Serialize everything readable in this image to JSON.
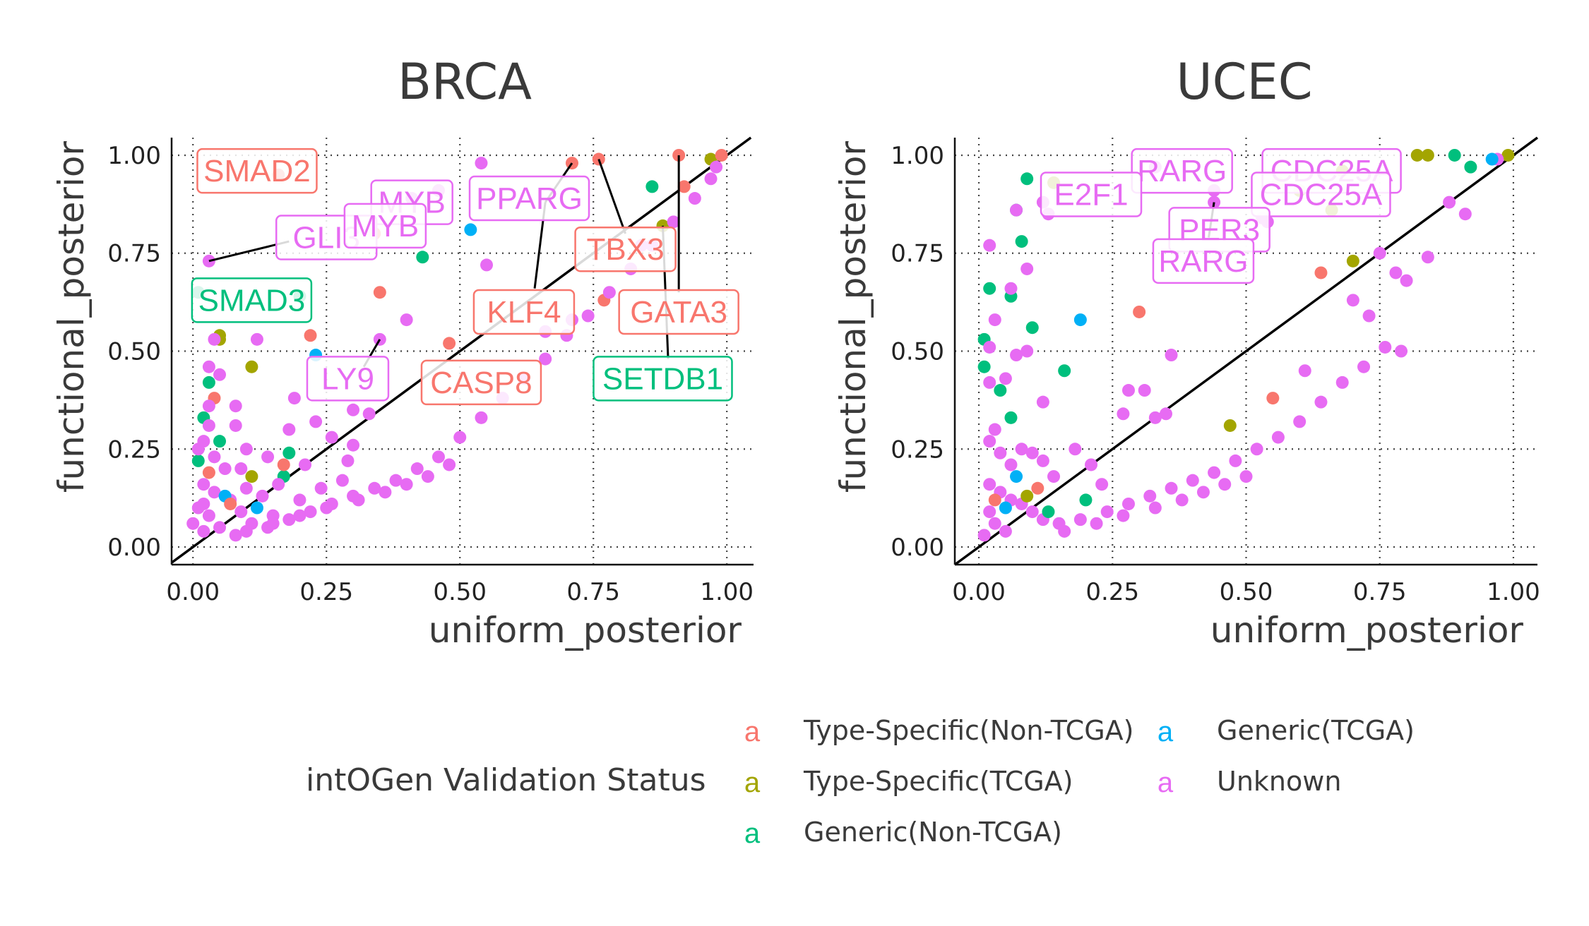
{
  "legend": {
    "title": "intOGen Validation Status",
    "key_glyph": "a",
    "items": [
      {
        "label": "Type-Specific(Non-TCGA)",
        "color": "#F8766D"
      },
      {
        "label": "Type-Specific(TCGA)",
        "color": "#A3A500"
      },
      {
        "label": "Generic(Non-TCGA)",
        "color": "#00BF7D"
      },
      {
        "label": "Generic(TCGA)",
        "color": "#00B0F6"
      },
      {
        "label": "Unknown",
        "color": "#E76BF3"
      }
    ]
  },
  "chart_data": [
    {
      "type": "scatter",
      "title": "BRCA",
      "xlabel": "uniform_posterior",
      "ylabel": "functional_posterior",
      "xlim": [
        -0.04,
        1.05
      ],
      "ylim": [
        -0.045,
        1.045
      ],
      "xticks": [
        "0.00",
        "0.25",
        "0.50",
        "0.75",
        "1.00"
      ],
      "yticks": [
        "0.00",
        "0.25",
        "0.50",
        "0.75",
        "1.00"
      ],
      "grid": true,
      "diagonal": true,
      "points": [
        [
          0.97,
          0.99,
          1
        ],
        [
          0.99,
          1.0,
          0
        ],
        [
          0.92,
          0.92,
          0
        ],
        [
          0.91,
          1.0,
          0
        ],
        [
          0.86,
          0.92,
          2
        ],
        [
          0.88,
          0.82,
          1
        ],
        [
          0.76,
          0.99,
          0
        ],
        [
          0.71,
          0.98,
          0
        ],
        [
          0.34,
          0.8,
          0
        ],
        [
          0.35,
          0.65,
          0
        ],
        [
          0.16,
          0.95,
          0
        ],
        [
          0.03,
          0.73,
          4
        ],
        [
          0.2,
          0.64,
          2
        ],
        [
          0.01,
          0.65,
          2
        ],
        [
          0.05,
          0.54,
          1
        ],
        [
          0.05,
          0.53,
          1
        ],
        [
          0.11,
          0.46,
          1
        ],
        [
          0.43,
          0.74,
          2
        ],
        [
          0.52,
          0.81,
          3
        ],
        [
          0.23,
          0.49,
          3
        ],
        [
          0.22,
          0.54,
          0
        ],
        [
          0.04,
          0.38,
          0
        ],
        [
          0.48,
          0.52,
          0
        ],
        [
          0.77,
          0.63,
          0
        ],
        [
          0.54,
          0.98,
          4
        ],
        [
          0.46,
          0.91,
          4
        ],
        [
          0.4,
          0.58,
          4
        ],
        [
          0.35,
          0.53,
          4
        ],
        [
          0.41,
          0.89,
          4
        ],
        [
          0.55,
          0.72,
          4
        ],
        [
          0.66,
          0.55,
          4
        ],
        [
          0.71,
          0.58,
          4
        ],
        [
          0.84,
          0.77,
          4
        ],
        [
          0.98,
          0.97,
          4
        ],
        [
          0.3,
          0.35,
          4
        ],
        [
          0.33,
          0.34,
          4
        ],
        [
          0.18,
          0.3,
          4
        ],
        [
          0.19,
          0.38,
          4
        ],
        [
          0.08,
          0.36,
          4
        ],
        [
          0.08,
          0.31,
          4
        ],
        [
          0.03,
          0.42,
          2
        ],
        [
          0.02,
          0.33,
          2
        ],
        [
          0.05,
          0.27,
          2
        ],
        [
          0.01,
          0.22,
          2
        ],
        [
          0.18,
          0.24,
          2
        ],
        [
          0.17,
          0.18,
          2
        ],
        [
          0.17,
          0.21,
          0
        ],
        [
          0.03,
          0.36,
          4
        ],
        [
          0.03,
          0.31,
          4
        ],
        [
          0.02,
          0.27,
          4
        ],
        [
          0.01,
          0.25,
          4
        ],
        [
          0.06,
          0.2,
          4
        ],
        [
          0.1,
          0.25,
          4
        ],
        [
          0.14,
          0.23,
          4
        ],
        [
          0.26,
          0.28,
          4
        ],
        [
          0.23,
          0.32,
          4
        ],
        [
          0.21,
          0.21,
          4
        ],
        [
          0.29,
          0.22,
          4
        ],
        [
          0.04,
          0.53,
          4
        ],
        [
          0.05,
          0.44,
          4
        ],
        [
          0.03,
          0.46,
          4
        ],
        [
          0.12,
          0.53,
          4
        ],
        [
          0.02,
          0.16,
          4
        ],
        [
          0.04,
          0.14,
          4
        ],
        [
          0.07,
          0.12,
          4
        ],
        [
          0.1,
          0.15,
          4
        ],
        [
          0.13,
          0.13,
          4
        ],
        [
          0.09,
          0.09,
          4
        ],
        [
          0.03,
          0.08,
          4
        ],
        [
          0.15,
          0.08,
          4
        ],
        [
          0.05,
          0.05,
          4
        ],
        [
          0.02,
          0.04,
          4
        ],
        [
          0.08,
          0.03,
          4
        ],
        [
          0.12,
          0.1,
          3
        ],
        [
          0.06,
          0.13,
          3
        ],
        [
          0.07,
          0.11,
          0
        ],
        [
          0.11,
          0.18,
          1
        ],
        [
          0.03,
          0.19,
          0
        ],
        [
          0.01,
          0.1,
          4
        ],
        [
          0.0,
          0.06,
          4
        ],
        [
          0.02,
          0.11,
          4
        ],
        [
          0.04,
          0.23,
          4
        ],
        [
          0.09,
          0.2,
          4
        ],
        [
          0.16,
          0.16,
          4
        ],
        [
          0.2,
          0.12,
          4
        ],
        [
          0.24,
          0.15,
          4
        ],
        [
          0.28,
          0.17,
          4
        ],
        [
          0.3,
          0.26,
          4
        ],
        [
          0.11,
          0.06,
          4
        ],
        [
          0.14,
          0.05,
          4
        ],
        [
          0.18,
          0.07,
          4
        ],
        [
          0.22,
          0.09,
          4
        ],
        [
          0.26,
          0.11,
          4
        ],
        [
          0.3,
          0.13,
          4
        ],
        [
          0.34,
          0.15,
          4
        ],
        [
          0.38,
          0.17,
          4
        ],
        [
          0.42,
          0.2,
          4
        ],
        [
          0.46,
          0.23,
          4
        ],
        [
          0.5,
          0.28,
          4
        ],
        [
          0.54,
          0.33,
          4
        ],
        [
          0.58,
          0.38,
          4
        ],
        [
          0.62,
          0.43,
          4
        ],
        [
          0.66,
          0.48,
          4
        ],
        [
          0.7,
          0.54,
          4
        ],
        [
          0.74,
          0.59,
          4
        ],
        [
          0.78,
          0.65,
          4
        ],
        [
          0.82,
          0.71,
          4
        ],
        [
          0.86,
          0.77,
          4
        ],
        [
          0.9,
          0.83,
          4
        ],
        [
          0.94,
          0.89,
          4
        ],
        [
          0.97,
          0.94,
          4
        ],
        [
          0.1,
          0.04,
          4
        ],
        [
          0.15,
          0.06,
          4
        ],
        [
          0.2,
          0.08,
          4
        ],
        [
          0.25,
          0.1,
          4
        ],
        [
          0.31,
          0.12,
          4
        ],
        [
          0.36,
          0.14,
          4
        ],
        [
          0.4,
          0.16,
          4
        ],
        [
          0.44,
          0.18,
          4
        ],
        [
          0.48,
          0.21,
          4
        ]
      ],
      "labels": [
        {
          "text": "SMAD2",
          "x": 0.12,
          "y": 0.96,
          "cat": 0
        },
        {
          "text": "MYB",
          "x": 0.41,
          "y": 0.88,
          "cat": 4
        },
        {
          "text": "PPARG",
          "x": 0.63,
          "y": 0.89,
          "cat": 4
        },
        {
          "text": "GLI3",
          "x": 0.25,
          "y": 0.79,
          "cat": 4
        },
        {
          "text": "MYB",
          "x": 0.36,
          "y": 0.82,
          "cat": 4
        },
        {
          "text": "TBX3",
          "x": 0.81,
          "y": 0.76,
          "cat": 0
        },
        {
          "text": "SMAD3",
          "x": 0.11,
          "y": 0.63,
          "cat": 2
        },
        {
          "text": "KLF4",
          "x": 0.62,
          "y": 0.6,
          "cat": 0
        },
        {
          "text": "GATA3",
          "x": 0.91,
          "y": 0.6,
          "cat": 0
        },
        {
          "text": "LY9",
          "x": 0.29,
          "y": 0.43,
          "cat": 4
        },
        {
          "text": "CASP8",
          "x": 0.54,
          "y": 0.42,
          "cat": 0
        },
        {
          "text": "SETDB1",
          "x": 0.88,
          "y": 0.43,
          "cat": 2
        }
      ],
      "leader_lines": [
        [
          0.03,
          0.73,
          0.18,
          0.78
        ],
        [
          0.76,
          0.99,
          0.81,
          0.8
        ],
        [
          0.71,
          0.98,
          0.66,
          0.88
        ],
        [
          0.66,
          0.88,
          0.64,
          0.66
        ],
        [
          0.91,
          1.0,
          0.91,
          0.65
        ],
        [
          0.88,
          0.82,
          0.89,
          0.48
        ],
        [
          0.35,
          0.53,
          0.32,
          0.46
        ]
      ]
    },
    {
      "type": "scatter",
      "title": "UCEC",
      "xlabel": "uniform_posterior",
      "ylabel": "functional_posterior",
      "xlim": [
        -0.045,
        1.045
      ],
      "ylim": [
        -0.045,
        1.045
      ],
      "xticks": [
        "0.00",
        "0.25",
        "0.50",
        "0.75",
        "1.00"
      ],
      "yticks": [
        "0.00",
        "0.25",
        "0.50",
        "0.75",
        "1.00"
      ],
      "grid": true,
      "diagonal": true,
      "points": [
        [
          0.99,
          1.0,
          1
        ],
        [
          0.97,
          0.99,
          4
        ],
        [
          0.96,
          0.99,
          3
        ],
        [
          0.89,
          1.0,
          2
        ],
        [
          0.92,
          0.97,
          2
        ],
        [
          0.84,
          1.0,
          1
        ],
        [
          0.82,
          1.0,
          1
        ],
        [
          0.68,
          0.96,
          1
        ],
        [
          0.6,
          0.91,
          1
        ],
        [
          0.66,
          0.86,
          1
        ],
        [
          0.56,
          0.93,
          0
        ],
        [
          0.14,
          0.93,
          1
        ],
        [
          0.09,
          0.94,
          2
        ],
        [
          0.07,
          0.86,
          2
        ],
        [
          0.08,
          0.78,
          2
        ],
        [
          0.02,
          0.66,
          2
        ],
        [
          0.06,
          0.64,
          2
        ],
        [
          0.1,
          0.56,
          2
        ],
        [
          0.16,
          0.45,
          2
        ],
        [
          0.19,
          0.58,
          3
        ],
        [
          0.3,
          0.6,
          0
        ],
        [
          0.64,
          0.7,
          0
        ],
        [
          0.7,
          0.73,
          1
        ],
        [
          0.55,
          0.38,
          0
        ],
        [
          0.47,
          0.31,
          1
        ],
        [
          0.01,
          0.53,
          2
        ],
        [
          0.01,
          0.46,
          2
        ],
        [
          0.04,
          0.4,
          2
        ],
        [
          0.06,
          0.33,
          2
        ],
        [
          0.02,
          0.77,
          4
        ],
        [
          0.07,
          0.86,
          4
        ],
        [
          0.12,
          0.88,
          4
        ],
        [
          0.13,
          0.85,
          4
        ],
        [
          0.33,
          0.97,
          4
        ],
        [
          0.44,
          0.91,
          4
        ],
        [
          0.44,
          0.88,
          4
        ],
        [
          0.53,
          0.84,
          4
        ],
        [
          0.54,
          0.83,
          4
        ],
        [
          0.75,
          0.75,
          4
        ],
        [
          0.78,
          0.7,
          4
        ],
        [
          0.8,
          0.68,
          4
        ],
        [
          0.84,
          0.74,
          4
        ],
        [
          0.88,
          0.88,
          4
        ],
        [
          0.91,
          0.85,
          4
        ],
        [
          0.7,
          0.63,
          4
        ],
        [
          0.73,
          0.59,
          4
        ],
        [
          0.79,
          0.5,
          4
        ],
        [
          0.61,
          0.45,
          4
        ],
        [
          0.36,
          0.49,
          4
        ],
        [
          0.28,
          0.4,
          4
        ],
        [
          0.31,
          0.4,
          4
        ],
        [
          0.33,
          0.33,
          4
        ],
        [
          0.35,
          0.34,
          4
        ],
        [
          0.27,
          0.34,
          4
        ],
        [
          0.09,
          0.71,
          4
        ],
        [
          0.06,
          0.66,
          4
        ],
        [
          0.03,
          0.58,
          4
        ],
        [
          0.02,
          0.51,
          4
        ],
        [
          0.07,
          0.49,
          4
        ],
        [
          0.09,
          0.5,
          4
        ],
        [
          0.12,
          0.37,
          4
        ],
        [
          0.05,
          0.43,
          4
        ],
        [
          0.02,
          0.42,
          4
        ],
        [
          0.03,
          0.3,
          4
        ],
        [
          0.02,
          0.27,
          4
        ],
        [
          0.04,
          0.24,
          4
        ],
        [
          0.06,
          0.21,
          4
        ],
        [
          0.08,
          0.25,
          4
        ],
        [
          0.1,
          0.24,
          4
        ],
        [
          0.12,
          0.22,
          4
        ],
        [
          0.14,
          0.18,
          4
        ],
        [
          0.18,
          0.25,
          4
        ],
        [
          0.21,
          0.21,
          4
        ],
        [
          0.23,
          0.16,
          4
        ],
        [
          0.02,
          0.16,
          4
        ],
        [
          0.04,
          0.14,
          4
        ],
        [
          0.06,
          0.12,
          4
        ],
        [
          0.08,
          0.11,
          4
        ],
        [
          0.1,
          0.09,
          4
        ],
        [
          0.12,
          0.07,
          4
        ],
        [
          0.02,
          0.09,
          4
        ],
        [
          0.03,
          0.06,
          4
        ],
        [
          0.05,
          0.04,
          4
        ],
        [
          0.01,
          0.03,
          4
        ],
        [
          0.07,
          0.18,
          3
        ],
        [
          0.05,
          0.1,
          3
        ],
        [
          0.11,
          0.15,
          0
        ],
        [
          0.03,
          0.12,
          0
        ],
        [
          0.09,
          0.13,
          1
        ],
        [
          0.13,
          0.09,
          2
        ],
        [
          0.2,
          0.12,
          2
        ],
        [
          0.15,
          0.06,
          4
        ],
        [
          0.19,
          0.07,
          4
        ],
        [
          0.24,
          0.09,
          4
        ],
        [
          0.28,
          0.11,
          4
        ],
        [
          0.32,
          0.13,
          4
        ],
        [
          0.36,
          0.15,
          4
        ],
        [
          0.4,
          0.17,
          4
        ],
        [
          0.44,
          0.19,
          4
        ],
        [
          0.48,
          0.22,
          4
        ],
        [
          0.52,
          0.25,
          4
        ],
        [
          0.56,
          0.28,
          4
        ],
        [
          0.6,
          0.32,
          4
        ],
        [
          0.64,
          0.37,
          4
        ],
        [
          0.68,
          0.42,
          4
        ],
        [
          0.72,
          0.46,
          4
        ],
        [
          0.76,
          0.51,
          4
        ],
        [
          0.16,
          0.04,
          4
        ],
        [
          0.22,
          0.06,
          4
        ],
        [
          0.27,
          0.08,
          4
        ],
        [
          0.33,
          0.1,
          4
        ],
        [
          0.38,
          0.12,
          4
        ],
        [
          0.42,
          0.14,
          4
        ],
        [
          0.46,
          0.16,
          4
        ],
        [
          0.5,
          0.18,
          4
        ]
      ],
      "labels": [
        {
          "text": "RARG",
          "x": 0.38,
          "y": 0.96,
          "cat": 4
        },
        {
          "text": "CDC25A",
          "x": 0.66,
          "y": 0.96,
          "cat": 4
        },
        {
          "text": "E2F1",
          "x": 0.21,
          "y": 0.9,
          "cat": 4
        },
        {
          "text": "CDC25A",
          "x": 0.64,
          "y": 0.9,
          "cat": 4
        },
        {
          "text": "PER3",
          "x": 0.45,
          "y": 0.81,
          "cat": 4
        },
        {
          "text": "RARG",
          "x": 0.42,
          "y": 0.73,
          "cat": 4
        }
      ],
      "leader_lines": [
        [
          0.44,
          0.88,
          0.43,
          0.79
        ]
      ]
    }
  ]
}
